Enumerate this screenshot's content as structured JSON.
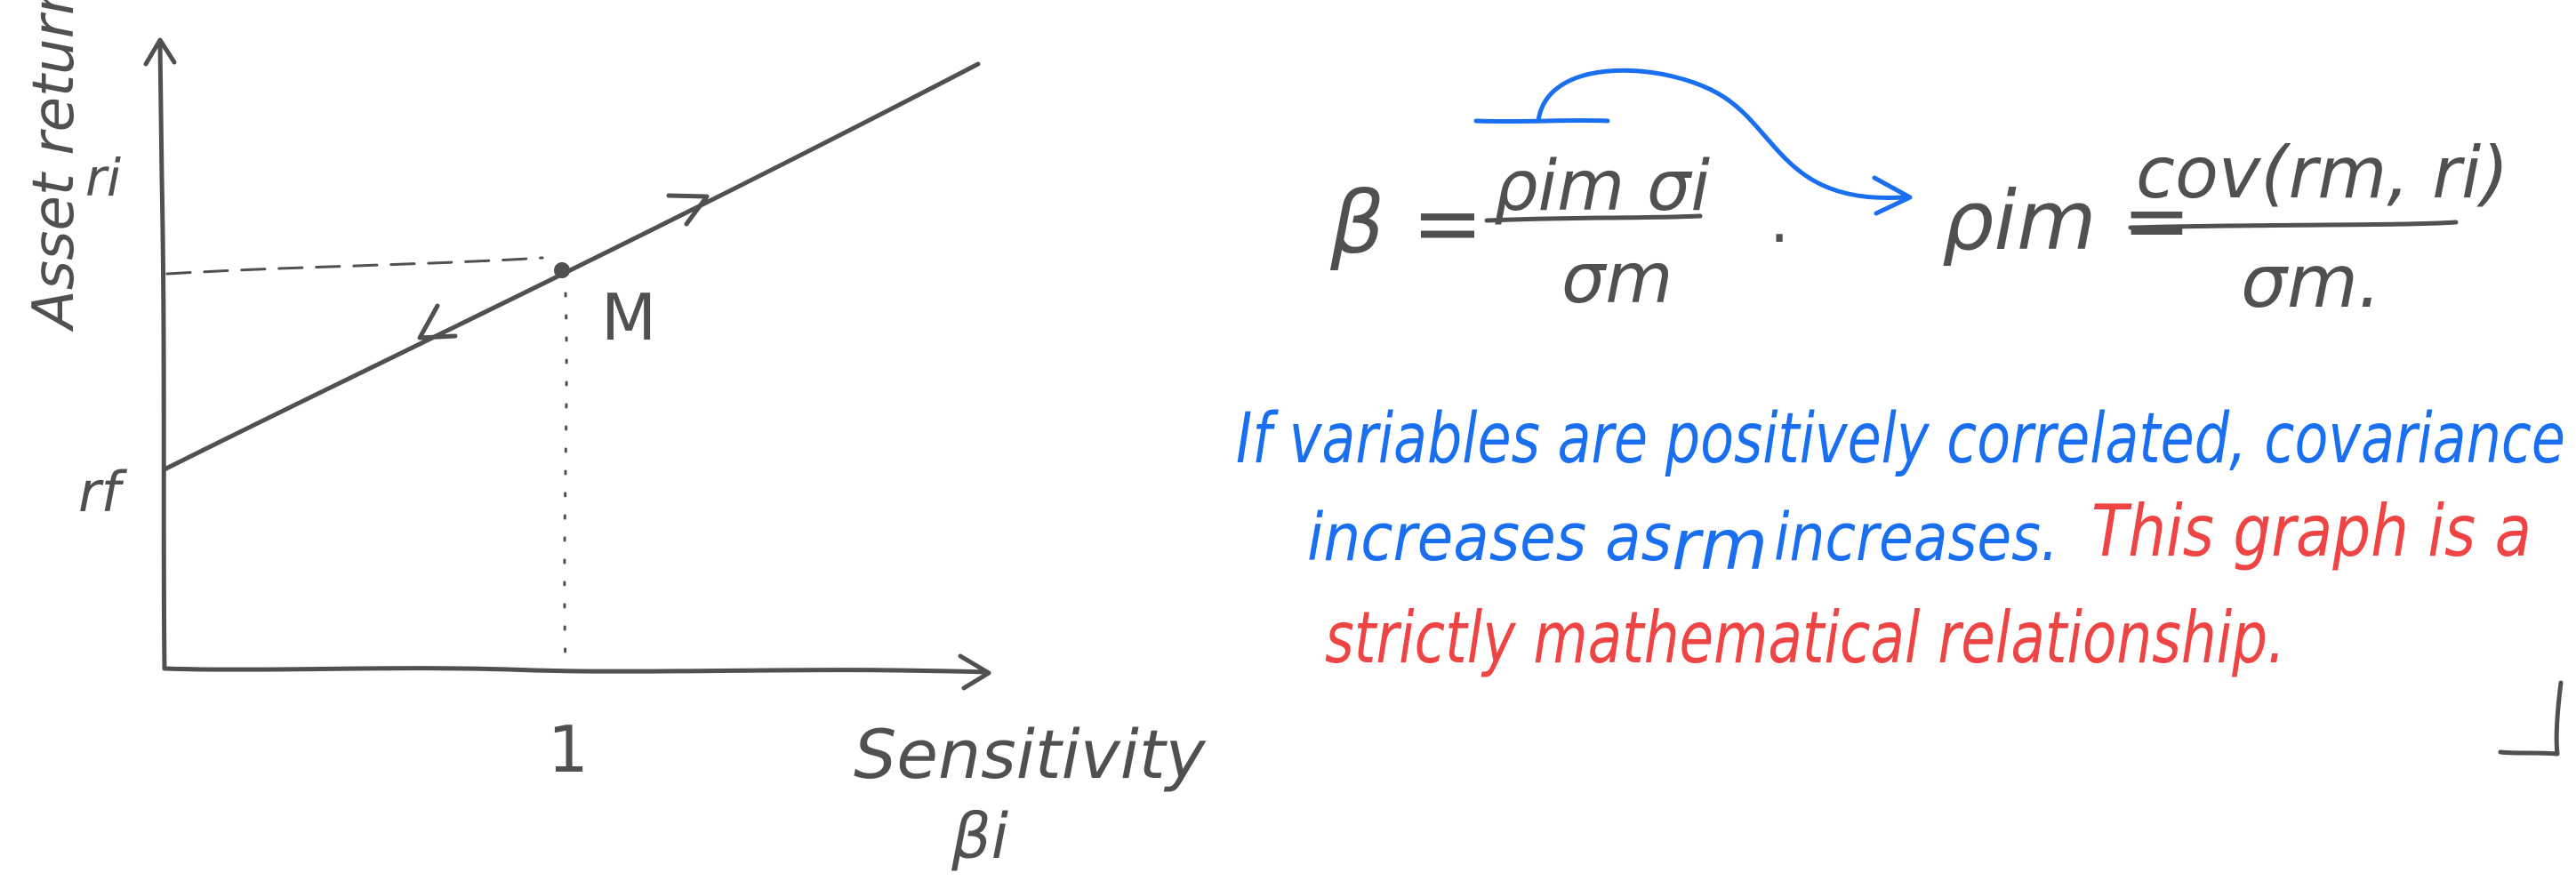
{
  "colors": {
    "ink": "#505050",
    "blue": "#1a6ef0",
    "red": "#ef4444",
    "background": "#ffffff"
  },
  "graph": {
    "y_axis_label": "Asset return",
    "y_axis_symbol": "ri",
    "x_axis_label": "Sensitivity",
    "x_axis_symbol": "βi",
    "intercept_label": "rf",
    "point_label": "M",
    "x_tick_label": "1"
  },
  "formulas": {
    "beta_lhs": "β =",
    "beta_numerator": "ρim σi",
    "beta_denominator": "σm",
    "separator": ".",
    "rho_lhs": "ρim =",
    "rho_numerator": "cov(rm, ri)",
    "rho_denominator": "σm."
  },
  "notes": {
    "blue_line1": "If variables are positively correlated, covariance",
    "blue_line2_start": "increases as",
    "blue_line2_rm": "rm",
    "blue_line2_end": "increases.",
    "red_line2": "This graph is a",
    "red_line3": "strictly mathematical relationship."
  }
}
